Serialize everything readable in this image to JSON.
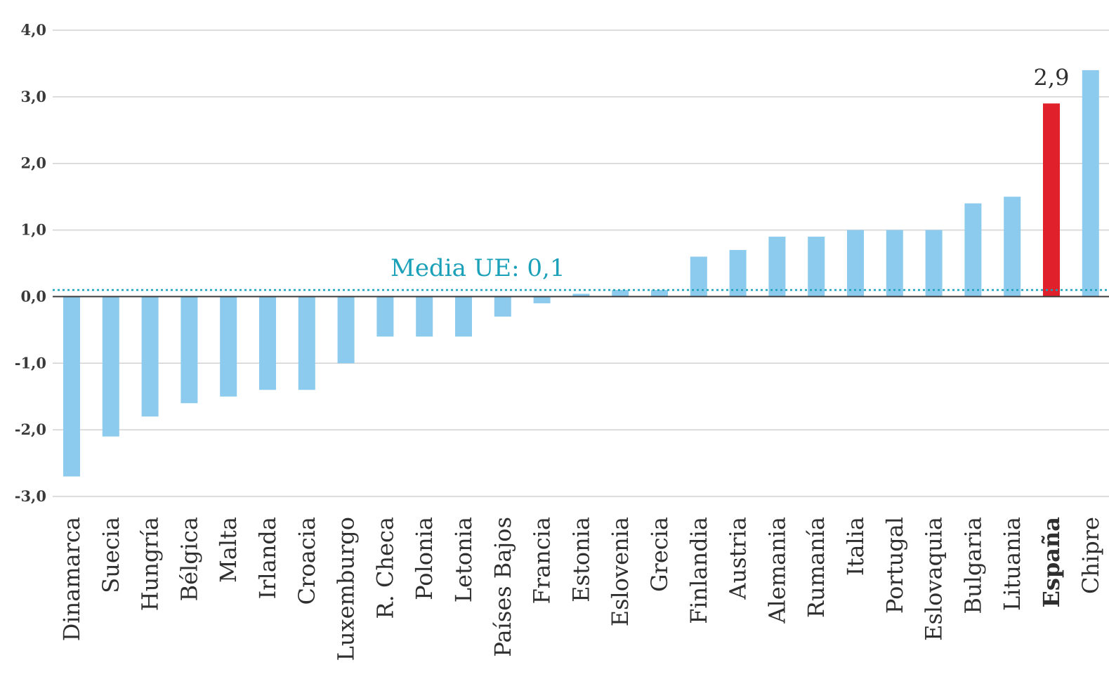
{
  "chart_data": {
    "type": "bar",
    "title": "",
    "xlabel": "",
    "ylabel": "",
    "ylim": [
      -3.0,
      4.0
    ],
    "yticks": [
      4.0,
      3.0,
      2.0,
      1.0,
      0.0,
      -1.0,
      -2.0,
      -3.0
    ],
    "ytick_labels": [
      "4,0",
      "3,0",
      "2,0",
      "1,0",
      "0,0",
      "-1,0",
      "-2,0",
      "-3,0"
    ],
    "grid": true,
    "categories": [
      "Dinamarca",
      "Suecia",
      "Hungría",
      "Bélgica",
      "Malta",
      "Irlanda",
      "Croacia",
      "Luxemburgo",
      "R. Checa",
      "Polonia",
      "Letonia",
      "Países Bajos",
      "Francia",
      "Estonia",
      "Eslovenia",
      "Grecia",
      "Finlandia",
      "Austria",
      "Alemania",
      "Rumanía",
      "Italia",
      "Portugal",
      "Eslovaquia",
      "Bulgaria",
      "Lituania",
      "España",
      "Chipre"
    ],
    "values": [
      -2.7,
      -2.1,
      -1.8,
      -1.6,
      -1.5,
      -1.4,
      -1.4,
      -1.0,
      -0.6,
      -0.6,
      -0.6,
      -0.3,
      -0.1,
      0.0,
      0.1,
      0.1,
      0.6,
      0.7,
      0.9,
      0.9,
      1.0,
      1.0,
      1.0,
      1.4,
      1.5,
      2.9,
      3.4
    ],
    "highlight": {
      "category": "España",
      "label": "2,9",
      "color": "#e0202a"
    },
    "bar_color": "#8ccbed",
    "reference_line": {
      "label": "Media UE:  0,1",
      "value": 0.1,
      "color": "#1aa0b8"
    }
  }
}
